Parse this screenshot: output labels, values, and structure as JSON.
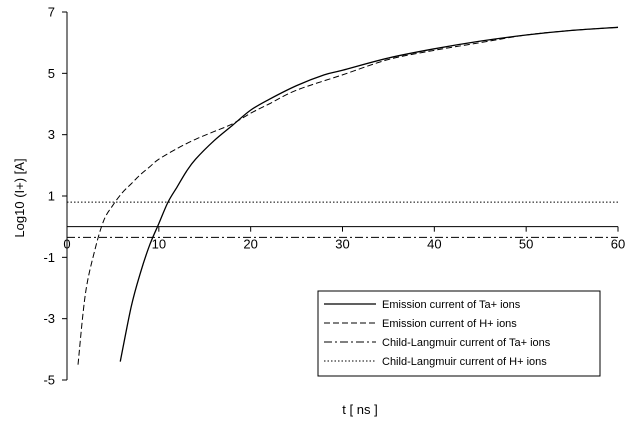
{
  "chart_data": {
    "type": "line",
    "xlabel": "t [ ns ]",
    "ylabel": "Log10 (I+) [A]",
    "xlim": [
      0,
      60
    ],
    "ylim": [
      -5,
      7
    ],
    "x_ticks": [
      0,
      10,
      20,
      30,
      40,
      50,
      60
    ],
    "y_ticks": [
      -5,
      -3,
      -1,
      1,
      3,
      5,
      7
    ],
    "grid": false,
    "legend_position": "bottom-right",
    "series": [
      {
        "name": "Emission current of Ta+ ions",
        "style": "solid",
        "color": "#000000",
        "x": [
          5.8,
          7,
          8,
          9,
          10,
          11,
          12,
          13,
          14,
          16,
          18,
          20,
          22,
          25,
          28,
          30,
          35,
          40,
          45,
          50,
          55,
          60
        ],
        "y": [
          -4.4,
          -2.6,
          -1.5,
          -0.6,
          0.1,
          0.8,
          1.3,
          1.8,
          2.2,
          2.8,
          3.3,
          3.8,
          4.15,
          4.6,
          4.95,
          5.1,
          5.5,
          5.8,
          6.05,
          6.25,
          6.4,
          6.5
        ]
      },
      {
        "name": "Emission current of  H+ ions",
        "style": "dashed",
        "color": "#000000",
        "x": [
          1.2,
          2,
          3,
          4,
          5,
          6,
          7,
          8,
          9,
          10,
          12,
          14,
          16,
          18,
          20,
          22,
          25,
          30,
          35,
          40,
          45,
          50,
          55,
          60
        ],
        "y": [
          -4.5,
          -2.2,
          -0.8,
          0.2,
          0.7,
          1.1,
          1.4,
          1.7,
          1.95,
          2.2,
          2.55,
          2.85,
          3.1,
          3.35,
          3.7,
          4.0,
          4.45,
          4.95,
          5.45,
          5.75,
          6.0,
          6.25,
          6.4,
          6.5
        ]
      },
      {
        "name": "Child-Langmuir current of Ta+ ions",
        "style": "dashdot",
        "color": "#000000",
        "x": [
          0,
          60
        ],
        "y": [
          -0.35,
          -0.35
        ]
      },
      {
        "name": "Child-Langmuir current of H+ ions",
        "style": "dotted",
        "color": "#000000",
        "x": [
          0,
          60
        ],
        "y": [
          0.8,
          0.8
        ]
      }
    ]
  }
}
